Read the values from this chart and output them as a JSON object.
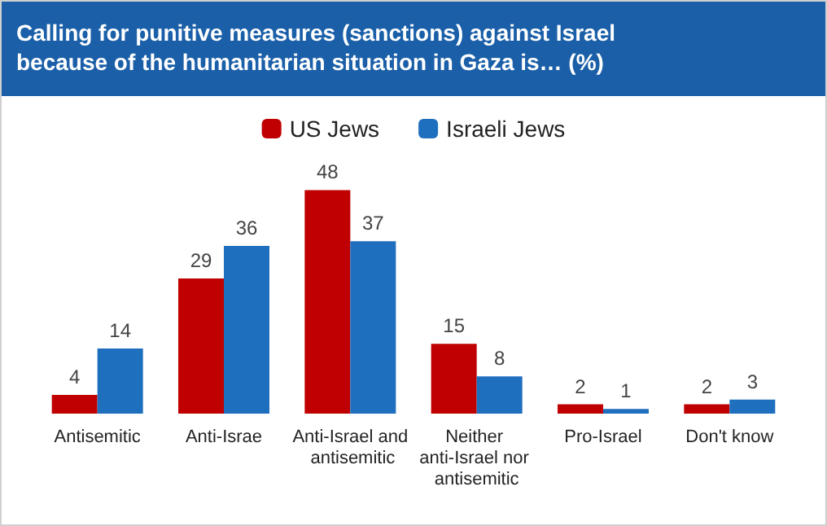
{
  "chart_data": {
    "type": "bar",
    "title": "Calling for punitive measures (sanctions) against Israel because of the humanitarian situation in Gaza is… (%)",
    "categories": [
      "Antisemitic",
      "Anti-Israe",
      "Anti-Israel and antisemitic",
      "Neither anti-Israel nor antisemitic",
      "Pro-Israel",
      "Don't know"
    ],
    "series": [
      {
        "name": "US Jews",
        "color": "#c00000",
        "values": [
          4,
          29,
          48,
          15,
          2,
          2
        ]
      },
      {
        "name": "Israeli Jews",
        "color": "#1f6fbf",
        "values": [
          14,
          36,
          37,
          8,
          1,
          3
        ]
      }
    ],
    "data_labels": true,
    "legend": "top"
  }
}
